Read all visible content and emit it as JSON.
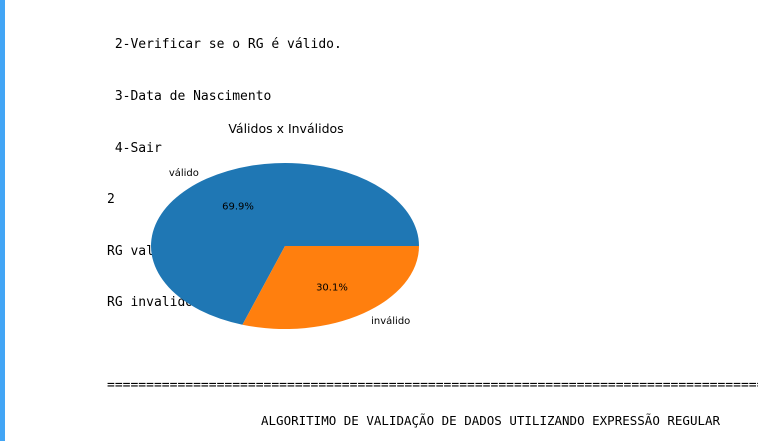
{
  "console": {
    "lines": [
      " 2-Verificar se o RG é válido.",
      " 3-Data de Nascimento",
      " 4-Sair",
      "2",
      "RG valido: 2795",
      "RG invalido: 1206"
    ]
  },
  "chart_data": {
    "type": "pie",
    "title": "Válidos x Inválidos",
    "labels": [
      "válido",
      "inválido"
    ],
    "values": [
      2795,
      1206
    ],
    "percent_labels": [
      "69.9%",
      "30.1%"
    ],
    "colors": [
      "#1f77b4",
      "#ff7f0e"
    ],
    "startangle_deg": 0
  },
  "footer": {
    "separator": "==========================================================================================================",
    "title": "ALGORITIMO DE VALIDAÇÃO DE DADOS UTILIZANDO EXPRESSÃO REGULAR"
  }
}
